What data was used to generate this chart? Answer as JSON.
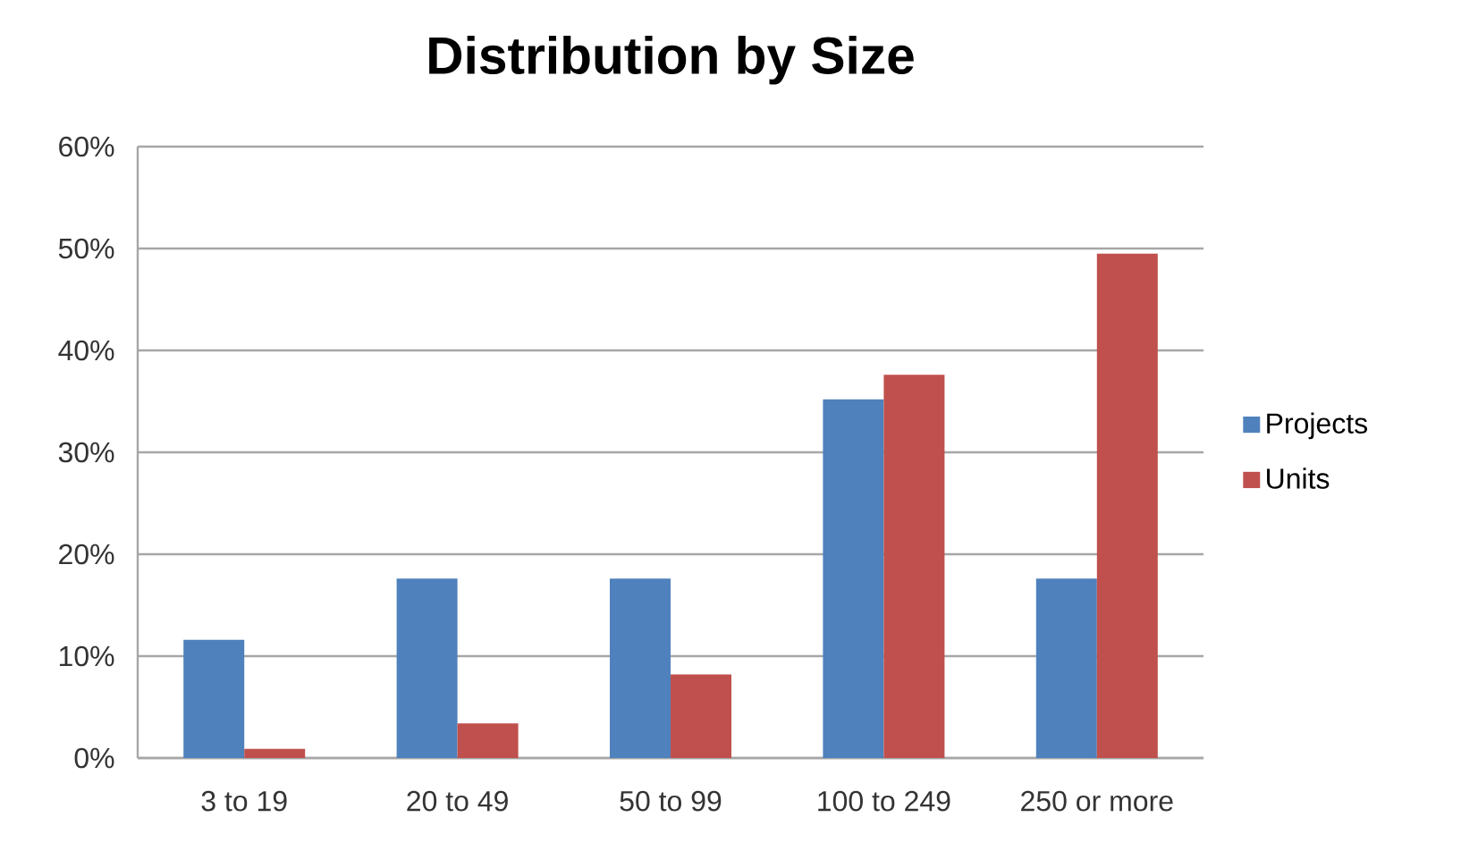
{
  "chart_data": {
    "type": "bar",
    "title": "Distribution by Size",
    "categories": [
      "3 to 19",
      "20 to 49",
      "50 to 99",
      "100 to 249",
      "250 or more"
    ],
    "series": [
      {
        "name": "Projects",
        "color": "#4f81bd",
        "values": [
          11.6,
          17.6,
          17.6,
          35.2,
          17.6
        ]
      },
      {
        "name": "Units",
        "color": "#c0504d",
        "values": [
          0.9,
          3.4,
          8.2,
          37.6,
          49.5
        ]
      }
    ],
    "ylim": [
      0,
      60
    ],
    "yticks": [
      {
        "value": 0,
        "label": "0%"
      },
      {
        "value": 10,
        "label": "10%"
      },
      {
        "value": 20,
        "label": "20%"
      },
      {
        "value": 30,
        "label": "30%"
      },
      {
        "value": 40,
        "label": "40%"
      },
      {
        "value": 50,
        "label": "50%"
      },
      {
        "value": 60,
        "label": "60%"
      }
    ],
    "grid": "y",
    "legend": "right"
  }
}
